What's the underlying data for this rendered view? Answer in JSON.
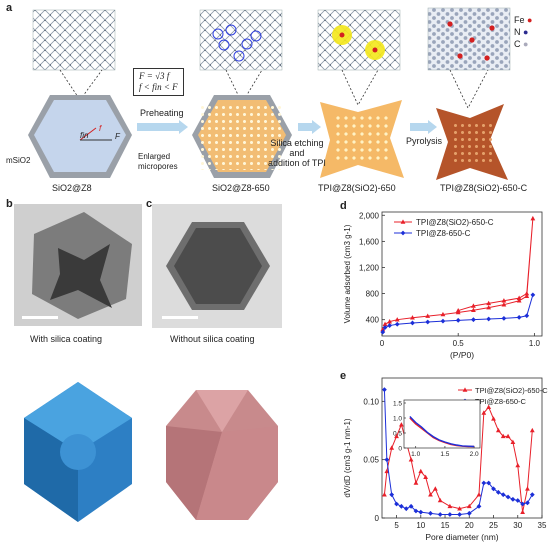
{
  "panel_labels": {
    "a": "a",
    "b": "b",
    "c": "c",
    "d": "d",
    "e": "e"
  },
  "panel_a": {
    "steps": [
      "SiO2@Z8",
      "SiO2@Z8-650",
      "TPI@Z8(SiO2)-650",
      "TPI@Z8(SiO2)-650-C"
    ],
    "arrows": [
      "Preheating",
      "Silica etching\nand\naddition of TPI",
      "Pyrolysis"
    ],
    "annotations": {
      "mSiO2": "mSiO2",
      "enlarged": "Enlarged\nmicropores",
      "f": "f",
      "fin": "fin",
      "F": "F",
      "formula_line1": "F = √3 f",
      "formula_line2": "f < fin < F"
    },
    "legend_atoms": [
      {
        "label": "Fe",
        "color": "#d42020"
      },
      {
        "label": "N",
        "color": "#2b2b8f"
      },
      {
        "label": "C",
        "color": "#bfc6d6"
      }
    ]
  },
  "panel_b": {
    "caption": "With silica coating"
  },
  "panel_c": {
    "caption": "Without silica coating"
  },
  "panel_d": {
    "xlabel": "(P/P0)",
    "ylabel": "Volume adsorbed (cm3 g-1)",
    "xticks": [
      "0",
      "0.5",
      "1.0"
    ],
    "yticks": [
      "400",
      "800",
      "1,200",
      "1,600",
      "2,000"
    ]
  },
  "panel_e": {
    "xlabel": "Pore diameter (nm)",
    "ylabel": "dV/dD (cm3 g-1 nm-1)",
    "xticks": [
      "5",
      "10",
      "15",
      "20",
      "25",
      "30",
      "35"
    ],
    "yticks": [
      "0",
      "0.05",
      "0.10"
    ],
    "inset_xticks": [
      "1.0",
      "1.5",
      "2.0"
    ],
    "inset_yticks": [
      "0",
      "0.5",
      "1.0",
      "1.5"
    ]
  },
  "chart_data": [
    {
      "type": "line",
      "panel": "d",
      "xlabel": "(P/P0)",
      "ylabel": "Volume adsorbed (cm3 g-1)",
      "xlim": [
        0,
        1.05
      ],
      "ylim": [
        150,
        2050
      ],
      "series": [
        {
          "name": "TPI@Z8(SiO2)-650-C",
          "color": "#e8202a",
          "marker": "triangle",
          "x": [
            0.005,
            0.02,
            0.05,
            0.1,
            0.2,
            0.3,
            0.4,
            0.5,
            0.6,
            0.7,
            0.8,
            0.9,
            0.95,
            0.99,
            0.95,
            0.9,
            0.8,
            0.7,
            0.6,
            0.5
          ],
          "y": [
            250,
            330,
            370,
            400,
            430,
            455,
            480,
            510,
            545,
            585,
            630,
            690,
            760,
            1950,
            800,
            730,
            690,
            650,
            610,
            540
          ]
        },
        {
          "name": "TPI@Z8-650-C",
          "color": "#1c2fd8",
          "marker": "diamond",
          "x": [
            0.005,
            0.02,
            0.05,
            0.1,
            0.2,
            0.3,
            0.4,
            0.5,
            0.6,
            0.7,
            0.8,
            0.9,
            0.95,
            0.99
          ],
          "y": [
            210,
            280,
            310,
            330,
            350,
            365,
            378,
            390,
            400,
            410,
            420,
            435,
            460,
            780
          ]
        }
      ]
    },
    {
      "type": "line",
      "panel": "e",
      "xlabel": "Pore diameter (nm)",
      "ylabel": "dV/dD (cm3 g-1 nm-1)",
      "xlim": [
        2,
        35
      ],
      "ylim": [
        0,
        0.12
      ],
      "series": [
        {
          "name": "TPI@Z8(SiO2)-650-C",
          "color": "#e8202a",
          "marker": "triangle",
          "x": [
            2.5,
            3,
            4,
            5,
            6,
            7,
            8,
            9,
            10,
            11,
            12,
            13,
            14,
            16,
            18,
            20,
            22,
            23,
            24,
            25,
            26,
            27,
            28,
            29,
            30,
            31,
            32,
            33
          ],
          "y": [
            0.02,
            0.04,
            0.06,
            0.07,
            0.08,
            0.065,
            0.05,
            0.03,
            0.04,
            0.035,
            0.02,
            0.025,
            0.015,
            0.01,
            0.008,
            0.01,
            0.02,
            0.09,
            0.095,
            0.085,
            0.075,
            0.07,
            0.07,
            0.065,
            0.045,
            0.005,
            0.025,
            0.075
          ]
        },
        {
          "name": "TPI@Z8-650-C",
          "color": "#1c2fd8",
          "marker": "diamond",
          "x": [
            2.5,
            3,
            4,
            5,
            6,
            7,
            8,
            9,
            10,
            12,
            14,
            16,
            18,
            20,
            22,
            23,
            24,
            25,
            26,
            27,
            28,
            29,
            30,
            31,
            32,
            33
          ],
          "y": [
            0.11,
            0.05,
            0.02,
            0.012,
            0.01,
            0.008,
            0.01,
            0.006,
            0.005,
            0.004,
            0.003,
            0.003,
            0.003,
            0.004,
            0.01,
            0.03,
            0.03,
            0.025,
            0.022,
            0.02,
            0.018,
            0.016,
            0.015,
            0.012,
            0.013,
            0.02
          ]
        }
      ],
      "inset": {
        "xlim": [
          0.8,
          2.1
        ],
        "ylim": [
          0,
          1.6
        ],
        "series": [
          {
            "name": "TPI@Z8(SiO2)-650-C",
            "color": "#e8202a",
            "x": [
              0.9,
              1.0,
              1.1,
              1.2,
              1.3,
              1.4,
              1.5,
              1.6,
              1.7,
              1.8,
              1.9,
              2.0
            ],
            "y": [
              1.0,
              0.8,
              0.65,
              0.5,
              0.35,
              0.25,
              0.18,
              0.12,
              0.08,
              0.06,
              0.05,
              0.05
            ]
          },
          {
            "name": "TPI@Z8-650-C",
            "color": "#1c2fd8",
            "x": [
              0.9,
              1.0,
              1.1,
              1.2,
              1.3,
              1.4,
              1.5,
              1.6,
              1.7,
              1.8,
              1.9,
              2.0
            ],
            "y": [
              1.05,
              0.85,
              0.7,
              0.52,
              0.38,
              0.27,
              0.2,
              0.14,
              0.1,
              0.07,
              0.06,
              0.05
            ]
          }
        ]
      }
    }
  ]
}
